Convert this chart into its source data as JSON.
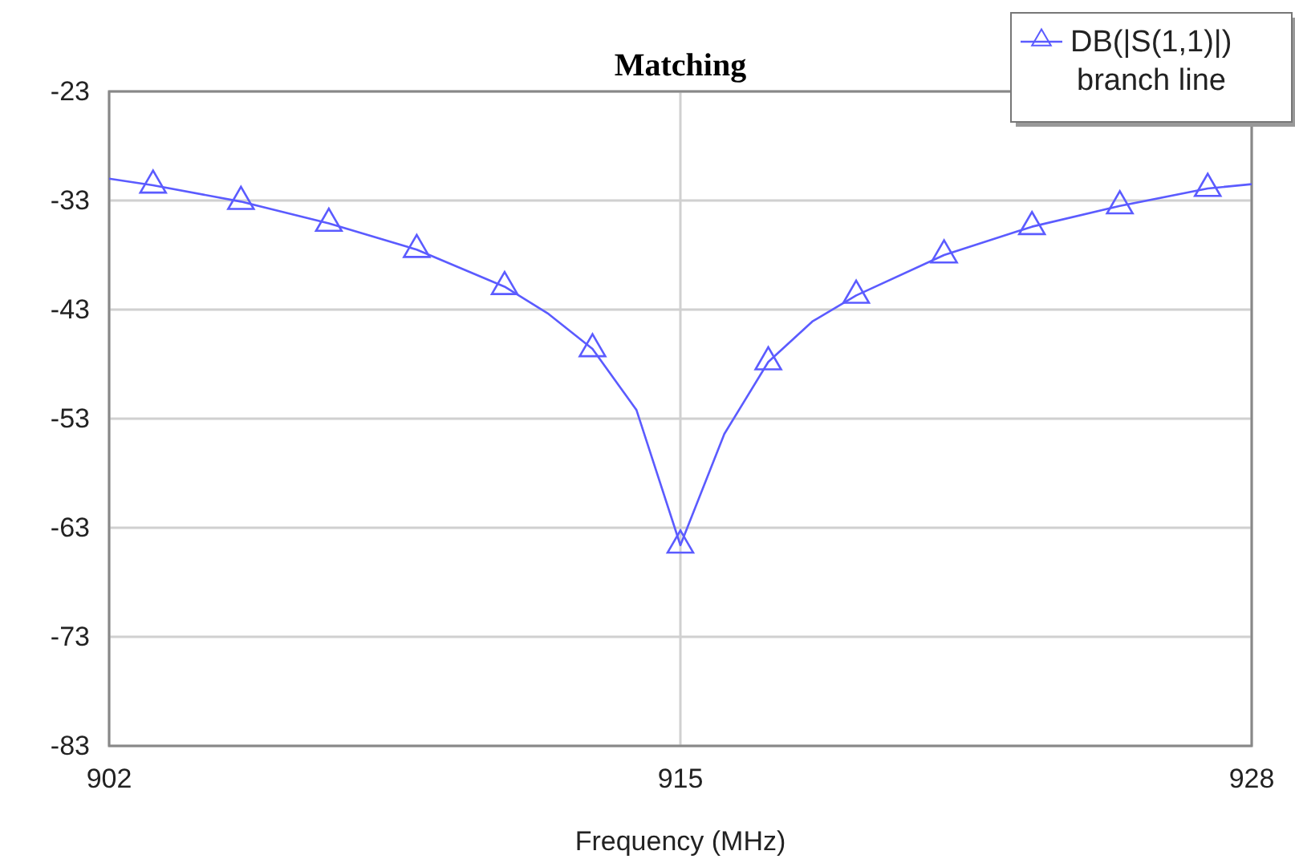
{
  "chart_data": {
    "type": "line",
    "title": "Matching",
    "xlabel": "Frequency (MHz)",
    "xlim": [
      902,
      928
    ],
    "xticks": [
      902,
      915,
      928
    ],
    "ylim": [
      -83,
      -23
    ],
    "yticks": [
      -83,
      -73,
      -63,
      -53,
      -43,
      -33,
      -23
    ],
    "grid": true,
    "legend": "top right",
    "marker": "triangle",
    "series": [
      {
        "color": "#5b5bff",
        "marker": "none",
        "x": [
          902,
          903,
          905,
          907,
          909,
          911,
          912,
          913,
          914,
          915,
          916,
          917,
          918,
          919,
          921,
          923,
          925,
          927,
          928
        ],
        "values": [
          -31.0,
          -31.6,
          -33.1,
          -35.1,
          -37.5,
          -40.9,
          -43.4,
          -46.6,
          -52.2,
          -64.6,
          -54.4,
          -47.8,
          -44.1,
          -41.7,
          -38.0,
          -35.4,
          -33.5,
          -31.9,
          -31.5
        ]
      },
      {
        "name": "DB(|S(1,1)|)\nbranch line",
        "type": "scatter",
        "color": "#5b5bff",
        "x": [
          903,
          905,
          907,
          909,
          911,
          913,
          915,
          917,
          919,
          921,
          923,
          925,
          927
        ],
        "values": [
          -31.6,
          -33.1,
          -35.1,
          -37.5,
          -40.9,
          -46.6,
          -64.6,
          -47.8,
          -41.7,
          -38.0,
          -35.4,
          -33.5,
          -31.9
        ]
      }
    ]
  }
}
